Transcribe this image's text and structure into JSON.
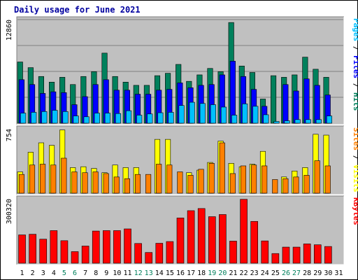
{
  "chart_data": {
    "type": "bar",
    "title": "Daily usage for June 2021",
    "days": [
      1,
      2,
      3,
      4,
      5,
      6,
      7,
      8,
      9,
      10,
      11,
      12,
      13,
      14,
      15,
      16,
      17,
      18,
      19,
      20,
      21,
      22,
      23,
      24,
      25,
      26,
      27,
      28,
      29,
      30,
      31
    ],
    "weekend_days": [
      5,
      6,
      12,
      13,
      19,
      20,
      26,
      27
    ],
    "panels": [
      {
        "id": "pages-files-hits",
        "max_label": "12860",
        "ymax": 12860,
        "axis_labels": [
          {
            "text": "Pages",
            "color": "#00c0ff"
          },
          {
            "text": " / ",
            "color": "#000000"
          },
          {
            "text": "Files",
            "color": "#0000ff"
          },
          {
            "text": " / ",
            "color": "#000000"
          },
          {
            "text": "Hits",
            "color": "#00805c"
          }
        ],
        "series": [
          {
            "name": "Hits",
            "color": "#00805c",
            "values": [
              7600,
              6900,
              5800,
              5100,
              5700,
              4800,
              5800,
              6400,
              8700,
              5800,
              5100,
              4700,
              4700,
              5900,
              6200,
              7300,
              5200,
              6000,
              6800,
              6400,
              12500,
              7100,
              6300,
              3000,
              5900,
              5700,
              6000,
              8200,
              6700,
              5700,
              0
            ]
          },
          {
            "name": "Files",
            "color": "#0000ff",
            "values": [
              5400,
              4800,
              3700,
              3900,
              3800,
              2300,
              3300,
              4800,
              5400,
              4100,
              4100,
              3600,
              3600,
              4100,
              4200,
              5000,
              4400,
              4700,
              4800,
              6000,
              7700,
              5800,
              4200,
              2100,
              0,
              4800,
              4000,
              5500,
              4700,
              3500,
              0
            ]
          },
          {
            "name": "Pages",
            "color": "#00c0ff",
            "values": [
              1250,
              1350,
              1450,
              1600,
              1450,
              900,
              800,
              1250,
              1250,
              1200,
              1550,
              1000,
              1150,
              1300,
              1350,
              2200,
              2600,
              2450,
              2300,
              2000,
              1000,
              2400,
              2100,
              1050,
              220,
              300,
              450,
              450,
              450,
              900,
              0
            ]
          }
        ]
      },
      {
        "id": "visits-sites",
        "max_label": "754",
        "ymax": 754,
        "axis_labels": [
          {
            "text": "Sites",
            "color": "#ff8000"
          },
          {
            "text": " / ",
            "color": "#000000"
          },
          {
            "text": "Visits",
            "color": "#ffff00"
          }
        ],
        "series": [
          {
            "name": "Visits",
            "color": "#ffff00",
            "values": [
              250,
              480,
              590,
              560,
              740,
              300,
              310,
              290,
              240,
              330,
              300,
              300,
              0,
              630,
              630,
              0,
              240,
              270,
              360,
              610,
              350,
              310,
              340,
              490,
              0,
              190,
              260,
              300,
              690,
              680,
              0
            ]
          },
          {
            "name": "Sites",
            "color": "#ff8000",
            "values": [
              220,
              330,
              340,
              330,
              410,
              250,
              240,
              250,
              230,
              190,
              170,
              220,
              220,
              340,
              330,
              250,
              210,
              280,
              350,
              590,
              230,
              320,
              330,
              320,
              160,
              170,
              190,
              210,
              380,
              320,
              0
            ]
          }
        ]
      },
      {
        "id": "kbytes",
        "max_label": "300320",
        "ymax": 300320,
        "axis_labels": [
          {
            "text": "KBytes",
            "color": "#ff0000"
          }
        ],
        "series": [
          {
            "name": "KBytes",
            "color": "#ff0000",
            "values": [
              132000,
              135000,
              112000,
              152000,
              105000,
              54000,
              80000,
              150000,
              152000,
              152000,
              160000,
              92000,
              50000,
              93000,
              101000,
              211000,
              245000,
              255000,
              217000,
              227000,
              103000,
              298000,
              195000,
              104000,
              45000,
              75000,
              75000,
              90000,
              86000,
              78000,
              0
            ]
          }
        ]
      }
    ]
  }
}
